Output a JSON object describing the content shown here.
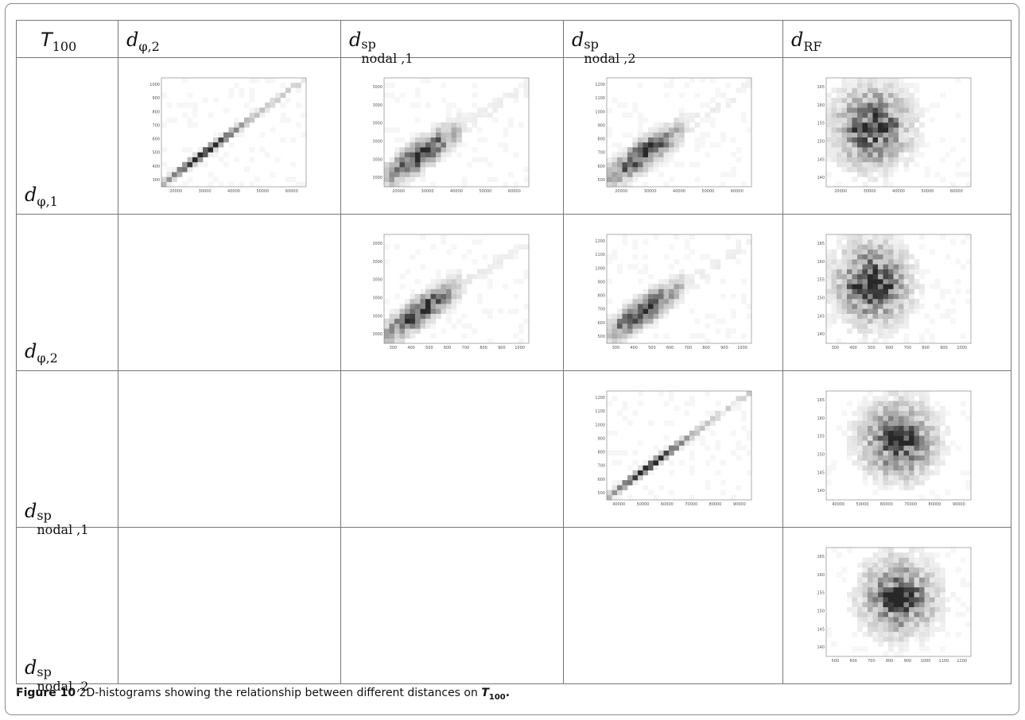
{
  "corner_label": {
    "base": "T",
    "sub": "100"
  },
  "columns": [
    {
      "base": "d",
      "sub": "φ,2",
      "sup": ""
    },
    {
      "base": "d",
      "sub": "nodal ,1",
      "sup": "sp"
    },
    {
      "base": "d",
      "sub": "nodal ,2",
      "sup": "sp"
    },
    {
      "base": "d",
      "sub": "RF",
      "sup": ""
    }
  ],
  "rows": [
    {
      "base": "d",
      "sub": "φ,1",
      "sup": ""
    },
    {
      "base": "d",
      "sub": "φ,2",
      "sup": ""
    },
    {
      "base": "d",
      "sub": "nodal ,1",
      "sup": "sp"
    },
    {
      "base": "d",
      "sub": "nodal ,2",
      "sup": "sp"
    }
  ],
  "caption": {
    "label": "Figure 10",
    "text": "2D-histograms showing the relationship between different distances on ",
    "symbol": "T",
    "symbol_sub": "100",
    "end": "."
  },
  "chart_data": [
    {
      "type": "heatmap",
      "row": 0,
      "col": 0,
      "xticks": [
        "20000",
        "30000",
        "40000",
        "50000",
        "60000"
      ],
      "yticks": [
        "300",
        "400",
        "500",
        "600",
        "700",
        "800",
        "900",
        "1000"
      ],
      "pattern": "diag-tight"
    },
    {
      "type": "heatmap",
      "row": 0,
      "col": 1,
      "xticks": [
        "20000",
        "30000",
        "40000",
        "50000",
        "60000"
      ],
      "yticks": [
        "40000",
        "50000",
        "60000",
        "70000",
        "80000",
        "90000"
      ],
      "pattern": "diag-wide"
    },
    {
      "type": "heatmap",
      "row": 0,
      "col": 2,
      "xticks": [
        "20000",
        "30000",
        "40000",
        "50000",
        "60000"
      ],
      "yticks": [
        "500",
        "600",
        "700",
        "800",
        "900",
        "1000",
        "1100",
        "1200"
      ],
      "pattern": "diag-wide"
    },
    {
      "type": "heatmap",
      "row": 0,
      "col": 3,
      "xticks": [
        "20000",
        "30000",
        "40000",
        "50000",
        "60000"
      ],
      "yticks": [
        "140",
        "145",
        "150",
        "155",
        "160",
        "165"
      ],
      "pattern": "blob-left"
    },
    {
      "type": "heatmap",
      "row": 1,
      "col": 1,
      "xticks": [
        "300",
        "400",
        "500",
        "600",
        "700",
        "800",
        "900",
        "1000"
      ],
      "yticks": [
        "40000",
        "50000",
        "60000",
        "70000",
        "80000",
        "90000"
      ],
      "pattern": "diag-wide"
    },
    {
      "type": "heatmap",
      "row": 1,
      "col": 2,
      "xticks": [
        "300",
        "400",
        "500",
        "600",
        "700",
        "800",
        "900",
        "1000"
      ],
      "yticks": [
        "500",
        "600",
        "700",
        "800",
        "900",
        "1000",
        "1100",
        "1200"
      ],
      "pattern": "diag-wide"
    },
    {
      "type": "heatmap",
      "row": 1,
      "col": 3,
      "xticks": [
        "300",
        "400",
        "500",
        "600",
        "700",
        "800",
        "900",
        "1000"
      ],
      "yticks": [
        "140",
        "145",
        "150",
        "155",
        "160",
        "165"
      ],
      "pattern": "blob-left"
    },
    {
      "type": "heatmap",
      "row": 2,
      "col": 2,
      "xticks": [
        "40000",
        "50000",
        "60000",
        "70000",
        "80000",
        "90000"
      ],
      "yticks": [
        "500",
        "600",
        "700",
        "800",
        "900",
        "1000",
        "1100",
        "1200"
      ],
      "pattern": "diag-tight"
    },
    {
      "type": "heatmap",
      "row": 2,
      "col": 3,
      "xticks": [
        "40000",
        "50000",
        "60000",
        "70000",
        "80000",
        "90000"
      ],
      "yticks": [
        "140",
        "145",
        "150",
        "155",
        "160",
        "165"
      ],
      "pattern": "blob-center"
    },
    {
      "type": "heatmap",
      "row": 3,
      "col": 3,
      "xticks": [
        "500",
        "600",
        "700",
        "800",
        "900",
        "1000",
        "1100",
        "1200"
      ],
      "yticks": [
        "140",
        "145",
        "150",
        "155",
        "160",
        "165"
      ],
      "pattern": "blob-center"
    }
  ]
}
